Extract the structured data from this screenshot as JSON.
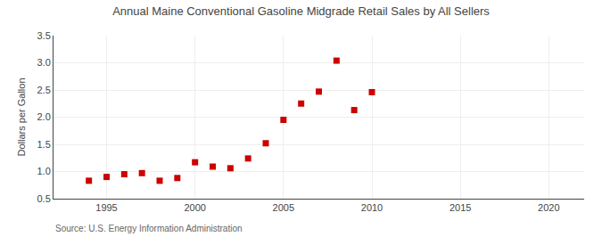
{
  "chart_data": {
    "type": "scatter",
    "title": "Annual Maine Conventional Gasoline Midgrade Retail Sales by All Sellers",
    "ylabel": "Dollars per Gallon",
    "annotations": [
      "Source: U.S. Energy Information Administration"
    ],
    "x": [
      1994,
      1995,
      1996,
      1997,
      1998,
      1999,
      2000,
      2001,
      2002,
      2003,
      2004,
      2005,
      2006,
      2007,
      2008,
      2009,
      2010
    ],
    "values": [
      0.83,
      0.9,
      0.95,
      0.97,
      0.83,
      0.88,
      1.17,
      1.09,
      1.06,
      1.24,
      1.52,
      1.95,
      2.25,
      2.47,
      3.04,
      2.13,
      2.46
    ],
    "color": "#cc0000",
    "marker": "square",
    "xlim": [
      1992,
      2022
    ],
    "ylim": [
      0.5,
      3.5
    ],
    "xticks": [
      1995,
      2000,
      2005,
      2010,
      2015,
      2020
    ],
    "yticks": [
      0.5,
      {
        "value": 1.0,
        "label": "1.0"
      },
      1.5,
      {
        "value": 2.0,
        "label": "2.0"
      },
      2.5,
      {
        "value": 3.0,
        "label": "3.0"
      },
      3.5
    ],
    "grid": true
  }
}
